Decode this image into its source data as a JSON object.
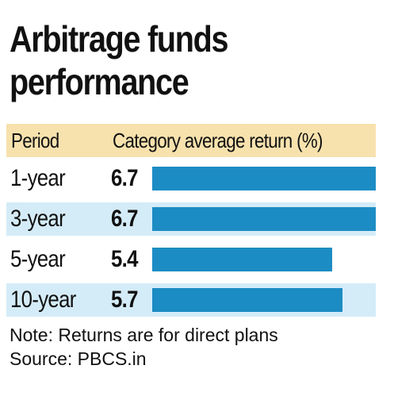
{
  "title_line1": "Arbitrage funds",
  "title_line2": "performance",
  "header": {
    "period": "Period",
    "metric": "Category average return (%)"
  },
  "footer": {
    "note": "Note: Returns are for direct plans",
    "source": "Source: PBCS.in"
  },
  "colors": {
    "bar": "#1c8cc4",
    "header_bg": "#f7e2ae",
    "row_shade": "#d4ecf8"
  },
  "chart_data": {
    "type": "bar",
    "orientation": "horizontal",
    "categories": [
      "1-year",
      "3-year",
      "5-year",
      "10-year"
    ],
    "values": [
      6.7,
      6.7,
      5.4,
      5.7
    ],
    "value_labels": [
      "6.7",
      "6.7",
      "5.4",
      "5.7"
    ],
    "title": "Arbitrage funds performance",
    "xlabel": "Category average return (%)",
    "ylabel": "Period",
    "xlim": [
      0,
      6.7
    ],
    "grid": false
  }
}
